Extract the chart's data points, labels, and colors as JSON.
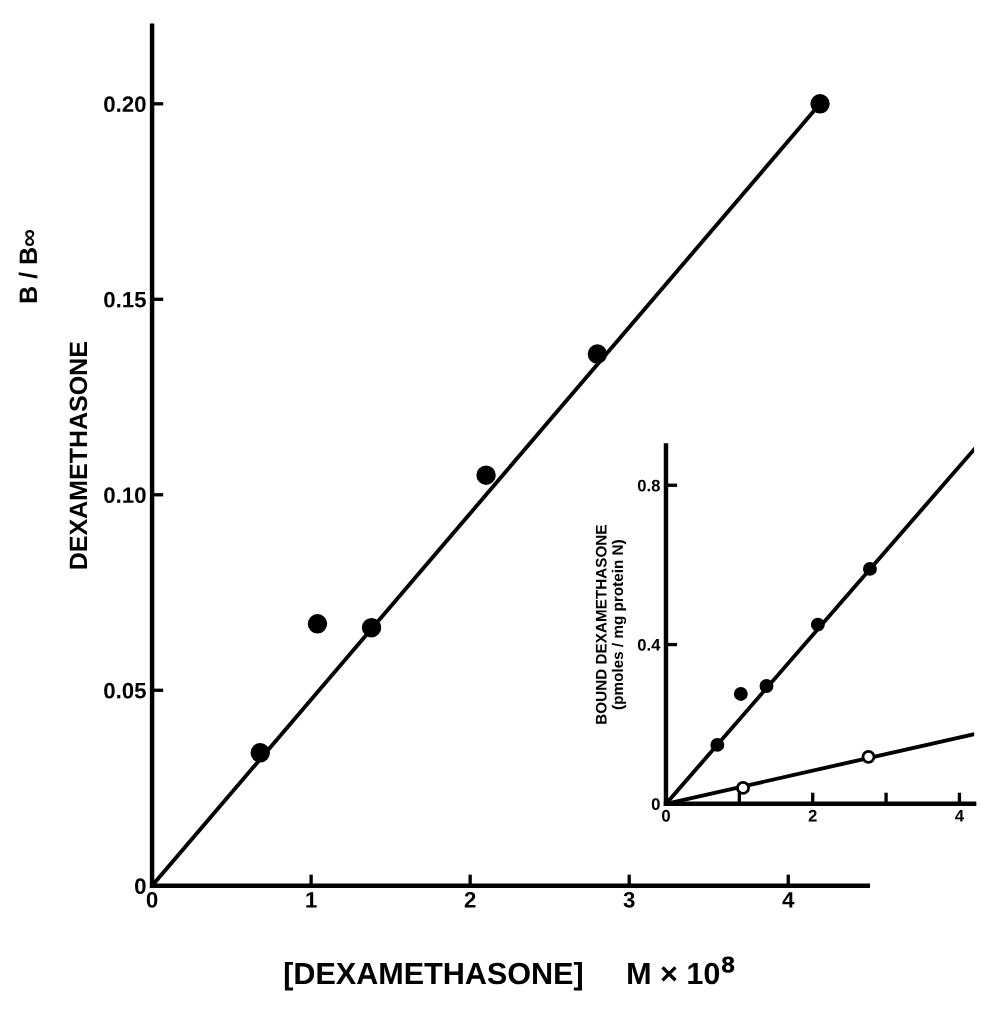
{
  "chart_data": [
    {
      "type": "scatter",
      "ylabel": "DEXAMETHASONE",
      "xlabel": "[DEXAMETHASONE]     M × 10$^{8}$",
      "annotations": [
        "B / B∞"
      ],
      "xlim": [
        0,
        4.5
      ],
      "ylim": [
        0,
        0.22
      ],
      "xticks": [
        0,
        1,
        2,
        3,
        4
      ],
      "yticks": [
        0,
        0.05,
        {
          "value": 0.1,
          "label": "0.10"
        },
        0.15,
        {
          "value": 0.2,
          "label": "0.20"
        }
      ],
      "grid": false,
      "legend": false,
      "series": [
        {
          "marker": "circle",
          "color": "#000000",
          "x": [
            0.68,
            1.04,
            1.38,
            2.1,
            2.8,
            4.2
          ],
          "values": [
            0.034,
            0.067,
            0.066,
            0.105,
            0.136,
            0.2
          ]
        },
        {
          "type": "line",
          "color": "#000000",
          "x": [
            0,
            4.2
          ],
          "values": [
            0,
            0.2
          ]
        }
      ]
    },
    {
      "type": "scatter",
      "ylabel": "BOUND DEXAMETHASONE\n(pmoles / mg protein N)",
      "xlim": [
        0,
        4.2
      ],
      "ylim": [
        0,
        0.9
      ],
      "xticks": [
        0,
        {
          "value": 1,
          "label": null
        },
        2,
        {
          "value": 3,
          "label": null
        },
        4
      ],
      "yticks": [
        0,
        0.4,
        0.8
      ],
      "grid": false,
      "legend": false,
      "series": [
        {
          "marker": "circle",
          "color": "#000000",
          "x": [
            0.7,
            1.02,
            1.37,
            2.07,
            2.78
          ],
          "values": [
            0.148,
            0.276,
            0.296,
            0.45,
            0.59
          ]
        },
        {
          "marker": "circle",
          "color": "#ffffff",
          "x": [
            1.05,
            2.76
          ],
          "values": [
            0.04,
            0.118
          ]
        },
        {
          "type": "line",
          "color": "#000000",
          "x": [
            0,
            4.2
          ],
          "values": [
            0,
            0.89
          ]
        },
        {
          "type": "line",
          "color": "#000000",
          "x": [
            0,
            4.2
          ],
          "values": [
            0,
            0.175
          ]
        }
      ]
    }
  ]
}
